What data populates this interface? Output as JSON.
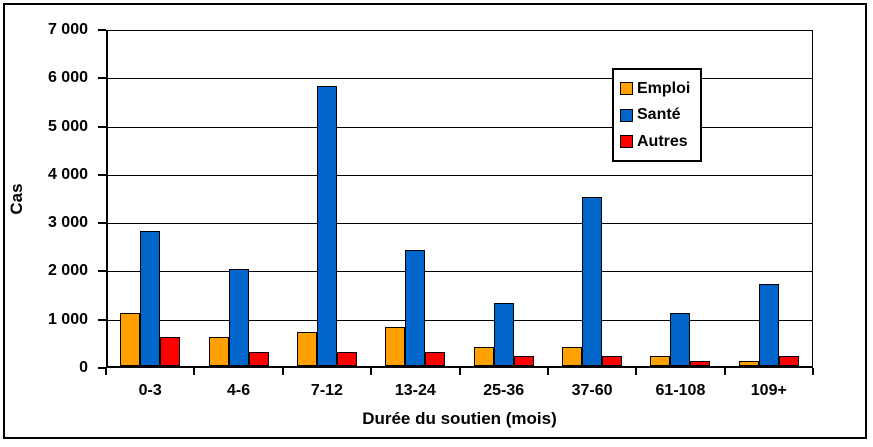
{
  "chart_data": {
    "type": "bar",
    "title": "",
    "xlabel": "Durée du soutien (mois)",
    "ylabel": "Cas",
    "categories": [
      "0-3",
      "4-6",
      "7-12",
      "13-24",
      "25-36",
      "37-60",
      "61-108",
      "109+"
    ],
    "series": [
      {
        "name": "Emploi",
        "color": "#FFA000",
        "values": [
          1100,
          600,
          700,
          800,
          400,
          400,
          200,
          100
        ]
      },
      {
        "name": "Santé",
        "color": "#0066CC",
        "values": [
          2800,
          2000,
          5800,
          2400,
          1300,
          3500,
          1100,
          1700
        ]
      },
      {
        "name": "Autres",
        "color": "#FF0000",
        "values": [
          600,
          300,
          300,
          300,
          200,
          200,
          100,
          200
        ]
      }
    ],
    "ylim": [
      0,
      7000
    ],
    "ytick_step": 1000,
    "ytick_labels": [
      "0",
      "1 000",
      "2 000",
      "3 000",
      "4 000",
      "5 000",
      "6 000",
      "7 000"
    ],
    "grid": true,
    "legend_position": "top-right",
    "plot_border_color": "#000000",
    "bar_border_color": "#000000",
    "background_color": "#FFFFFF"
  }
}
